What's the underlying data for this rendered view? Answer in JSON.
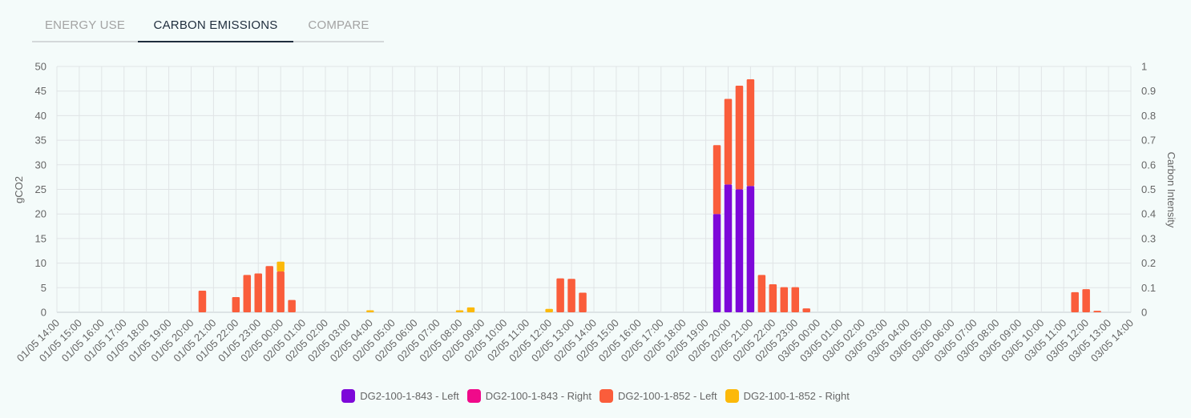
{
  "tabs": [
    {
      "label": "ENERGY USE",
      "active": false
    },
    {
      "label": "CARBON EMISSIONS",
      "active": true
    },
    {
      "label": "COMPARE",
      "active": false
    }
  ],
  "chart_data": {
    "type": "bar",
    "stacked": true,
    "ylabel": "gCO2",
    "y2label": "Carbon Intensity",
    "ylim": [
      0,
      50
    ],
    "yticks": [
      0,
      5,
      10,
      15,
      20,
      25,
      30,
      35,
      40,
      45,
      50
    ],
    "y2lim": [
      0,
      1
    ],
    "y2ticks": [
      "0",
      "0.1",
      "0.2",
      "0.3",
      "0.4",
      "0.5",
      "0.6",
      "0.7",
      "0.8",
      "0.9",
      "1"
    ],
    "grid": true,
    "legend_position": "bottom",
    "x_start": "01/05 14:00",
    "x_end": "03/05 14:00",
    "xticks": [
      "01/05 14:00",
      "01/05 15:00",
      "01/05 16:00",
      "01/05 17:00",
      "01/05 18:00",
      "01/05 19:00",
      "01/05 20:00",
      "01/05 21:00",
      "01/05 22:00",
      "01/05 23:00",
      "02/05 00:00",
      "02/05 01:00",
      "02/05 02:00",
      "02/05 03:00",
      "02/05 04:00",
      "02/05 05:00",
      "02/05 06:00",
      "02/05 07:00",
      "02/05 08:00",
      "02/05 09:00",
      "02/05 10:00",
      "02/05 11:00",
      "02/05 12:00",
      "02/05 13:00",
      "02/05 14:00",
      "02/05 15:00",
      "02/05 16:00",
      "02/05 17:00",
      "02/05 18:00",
      "02/05 19:00",
      "02/05 20:00",
      "02/05 21:00",
      "02/05 22:00",
      "02/05 23:00",
      "03/05 00:00",
      "03/05 01:00",
      "03/05 02:00",
      "03/05 03:00",
      "03/05 04:00",
      "03/05 05:00",
      "03/05 06:00",
      "03/05 07:00",
      "03/05 08:00",
      "03/05 09:00",
      "03/05 10:00",
      "03/05 11:00",
      "03/05 12:00",
      "03/05 13:00",
      "03/05 14:00"
    ],
    "series": [
      {
        "name": "DG2-100-1-843 - Left",
        "color": "#7d08d9",
        "points": [
          {
            "x": "02/05 19:30",
            "y": 20.0
          },
          {
            "x": "02/05 20:00",
            "y": 26.0
          },
          {
            "x": "02/05 20:30",
            "y": 25.0
          },
          {
            "x": "02/05 21:00",
            "y": 25.7
          }
        ]
      },
      {
        "name": "DG2-100-1-843 - Right",
        "color": "#f00a8a",
        "points": []
      },
      {
        "name": "DG2-100-1-852 - Left",
        "color": "#fa5d3b",
        "points": [
          {
            "x": "01/05 20:30",
            "y": 4.4
          },
          {
            "x": "01/05 22:00",
            "y": 3.1
          },
          {
            "x": "01/05 22:30",
            "y": 7.6
          },
          {
            "x": "01/05 23:00",
            "y": 7.9
          },
          {
            "x": "01/05 23:30",
            "y": 9.4
          },
          {
            "x": "02/05 00:00",
            "y": 8.3
          },
          {
            "x": "02/05 00:30",
            "y": 2.5
          },
          {
            "x": "02/05 12:30",
            "y": 6.9
          },
          {
            "x": "02/05 13:00",
            "y": 6.8
          },
          {
            "x": "02/05 13:30",
            "y": 4.0
          },
          {
            "x": "02/05 19:30",
            "y": 14.0
          },
          {
            "x": "02/05 20:00",
            "y": 17.4
          },
          {
            "x": "02/05 20:30",
            "y": 21.1
          },
          {
            "x": "02/05 21:00",
            "y": 21.7
          },
          {
            "x": "02/05 21:30",
            "y": 7.6
          },
          {
            "x": "02/05 22:00",
            "y": 5.7
          },
          {
            "x": "02/05 22:30",
            "y": 5.1
          },
          {
            "x": "02/05 23:00",
            "y": 5.1
          },
          {
            "x": "02/05 23:30",
            "y": 0.8
          },
          {
            "x": "03/05 11:30",
            "y": 4.1
          },
          {
            "x": "03/05 12:00",
            "y": 4.7
          },
          {
            "x": "03/05 12:30",
            "y": 0.3
          }
        ]
      },
      {
        "name": "DG2-100-1-852 - Right",
        "color": "#fcb90a",
        "points": [
          {
            "x": "02/05 00:00",
            "y": 2.0
          },
          {
            "x": "02/05 04:00",
            "y": 0.4
          },
          {
            "x": "02/05 08:00",
            "y": 0.4
          },
          {
            "x": "02/05 08:30",
            "y": 1.0
          },
          {
            "x": "02/05 12:00",
            "y": 0.7
          }
        ]
      }
    ]
  }
}
